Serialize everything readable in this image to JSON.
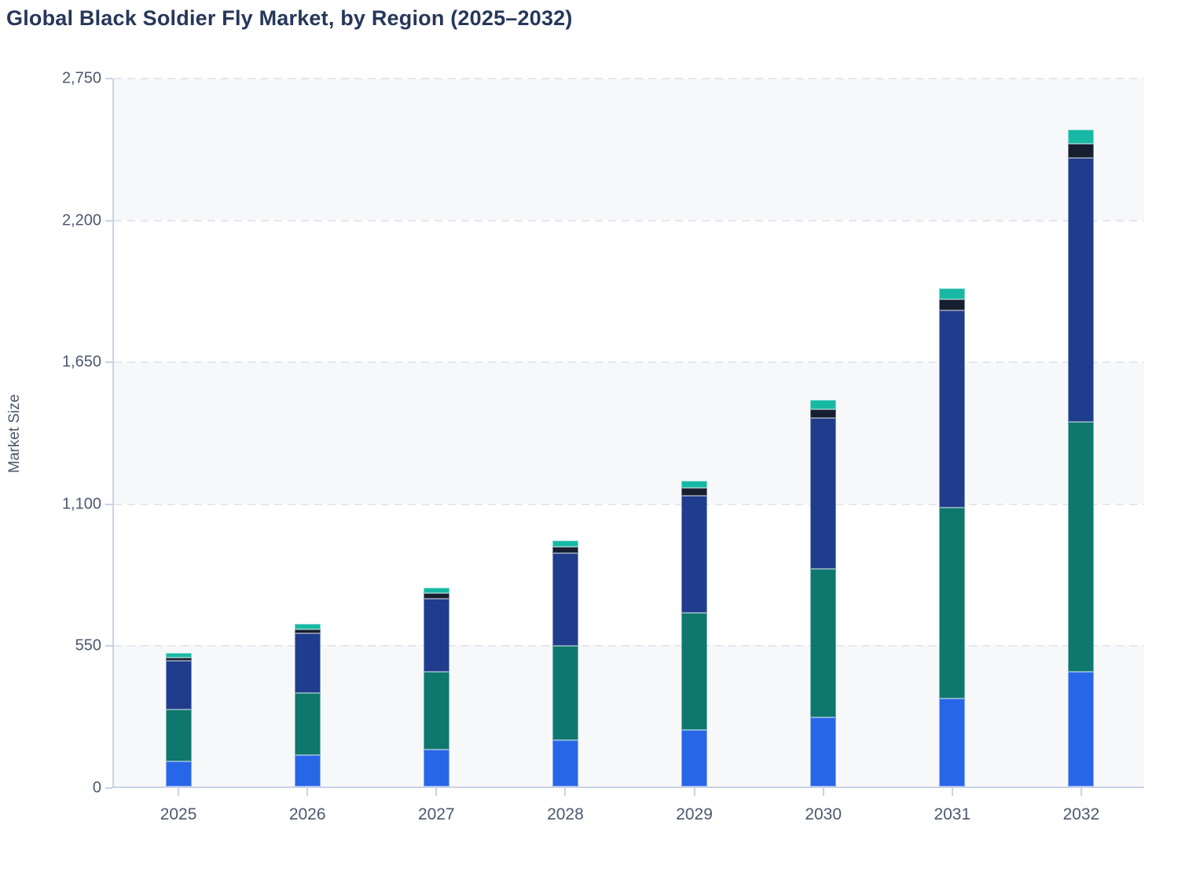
{
  "page": {
    "background": "#ffffff"
  },
  "colors": {
    "title_text": "#26375a",
    "axis_line": "#c9d3e6",
    "tick_label": "#4c586e",
    "gridline": "#e4e7ec",
    "band_light": "#f7f8fa",
    "band_white": "#ffffff"
  },
  "y_axis": {
    "ticks": [
      {
        "value": 0,
        "label": "0"
      },
      {
        "value": 550,
        "label": "550"
      },
      {
        "value": 1100,
        "label": "1,100"
      },
      {
        "value": 1650,
        "label": "1,650"
      },
      {
        "value": 2200,
        "label": "2,200"
      },
      {
        "value": 2750,
        "label": "2,750"
      }
    ]
  },
  "chart_data": {
    "type": "bar",
    "stacked": true,
    "title": "Global Black Soldier Fly Market, by Region (2025–2032)",
    "xlabel": "",
    "ylabel": "Market Size",
    "ylim": [
      0,
      2750
    ],
    "grid": "horizontal-dashed",
    "legend_visible": false,
    "categories": [
      "2025",
      "2026",
      "2027",
      "2028",
      "2029",
      "2030",
      "2031",
      "2032"
    ],
    "series": [
      {
        "name": "bright-blue-bottom",
        "color": "#2866e8",
        "values": [
          98,
          121,
          144,
          179,
          220,
          268,
          342,
          445
        ]
      },
      {
        "name": "teal-green",
        "color": "#0e776e",
        "values": [
          202,
          243,
          300,
          365,
          454,
          576,
          738,
          968
        ]
      },
      {
        "name": "navy-blue",
        "color": "#203c8c",
        "values": [
          186,
          230,
          284,
          361,
          452,
          585,
          766,
          1022
        ]
      },
      {
        "name": "dark-navy",
        "color": "#161f30",
        "values": [
          13,
          16,
          20,
          23,
          31,
          34,
          43,
          56
        ]
      },
      {
        "name": "mint-teal-top",
        "color": "#17b9a4",
        "values": [
          20,
          21,
          24,
          26,
          29,
          37,
          41,
          54
        ]
      }
    ],
    "totals": [
      519,
      631,
      772,
      954,
      1186,
      1500,
      1930,
      2545
    ]
  }
}
